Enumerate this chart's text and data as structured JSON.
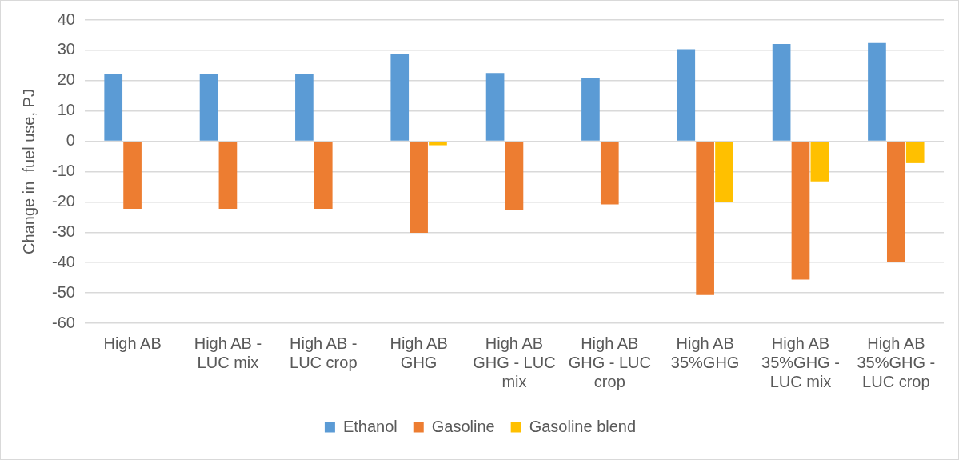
{
  "chart_data": {
    "type": "bar",
    "ylabel": "Change in  fuel use, PJ",
    "categories": [
      "High AB",
      "High AB - LUC mix",
      "High AB - LUC crop",
      "High AB GHG",
      "High AB GHG - LUC mix",
      "High AB GHG - LUC crop",
      "High AB 35%GHG",
      "High AB 35%GHG - LUC mix",
      "High AB 35%GHG - LUC crop"
    ],
    "series": [
      {
        "name": "Ethanol",
        "color": "#5b9bd5",
        "values": [
          22.3,
          22.3,
          22.3,
          28.8,
          22.5,
          20.8,
          30.4,
          32.1,
          32.4
        ]
      },
      {
        "name": "Gasoline",
        "color": "#ed7d31",
        "values": [
          -22.3,
          -22.3,
          -22.3,
          -30.2,
          -22.5,
          -20.8,
          -50.7,
          -45.6,
          -39.7
        ]
      },
      {
        "name": "Gasoline blend",
        "color": "#ffc000",
        "values": [
          0,
          0,
          0,
          -1.3,
          0,
          0,
          -20.1,
          -13.2,
          -7.2
        ]
      }
    ],
    "ylim": [
      -60,
      40
    ],
    "yticks": [
      -60,
      -50,
      -40,
      -30,
      -20,
      -10,
      0,
      10,
      20,
      30,
      40
    ],
    "grid": "y",
    "legend": "bottom"
  }
}
